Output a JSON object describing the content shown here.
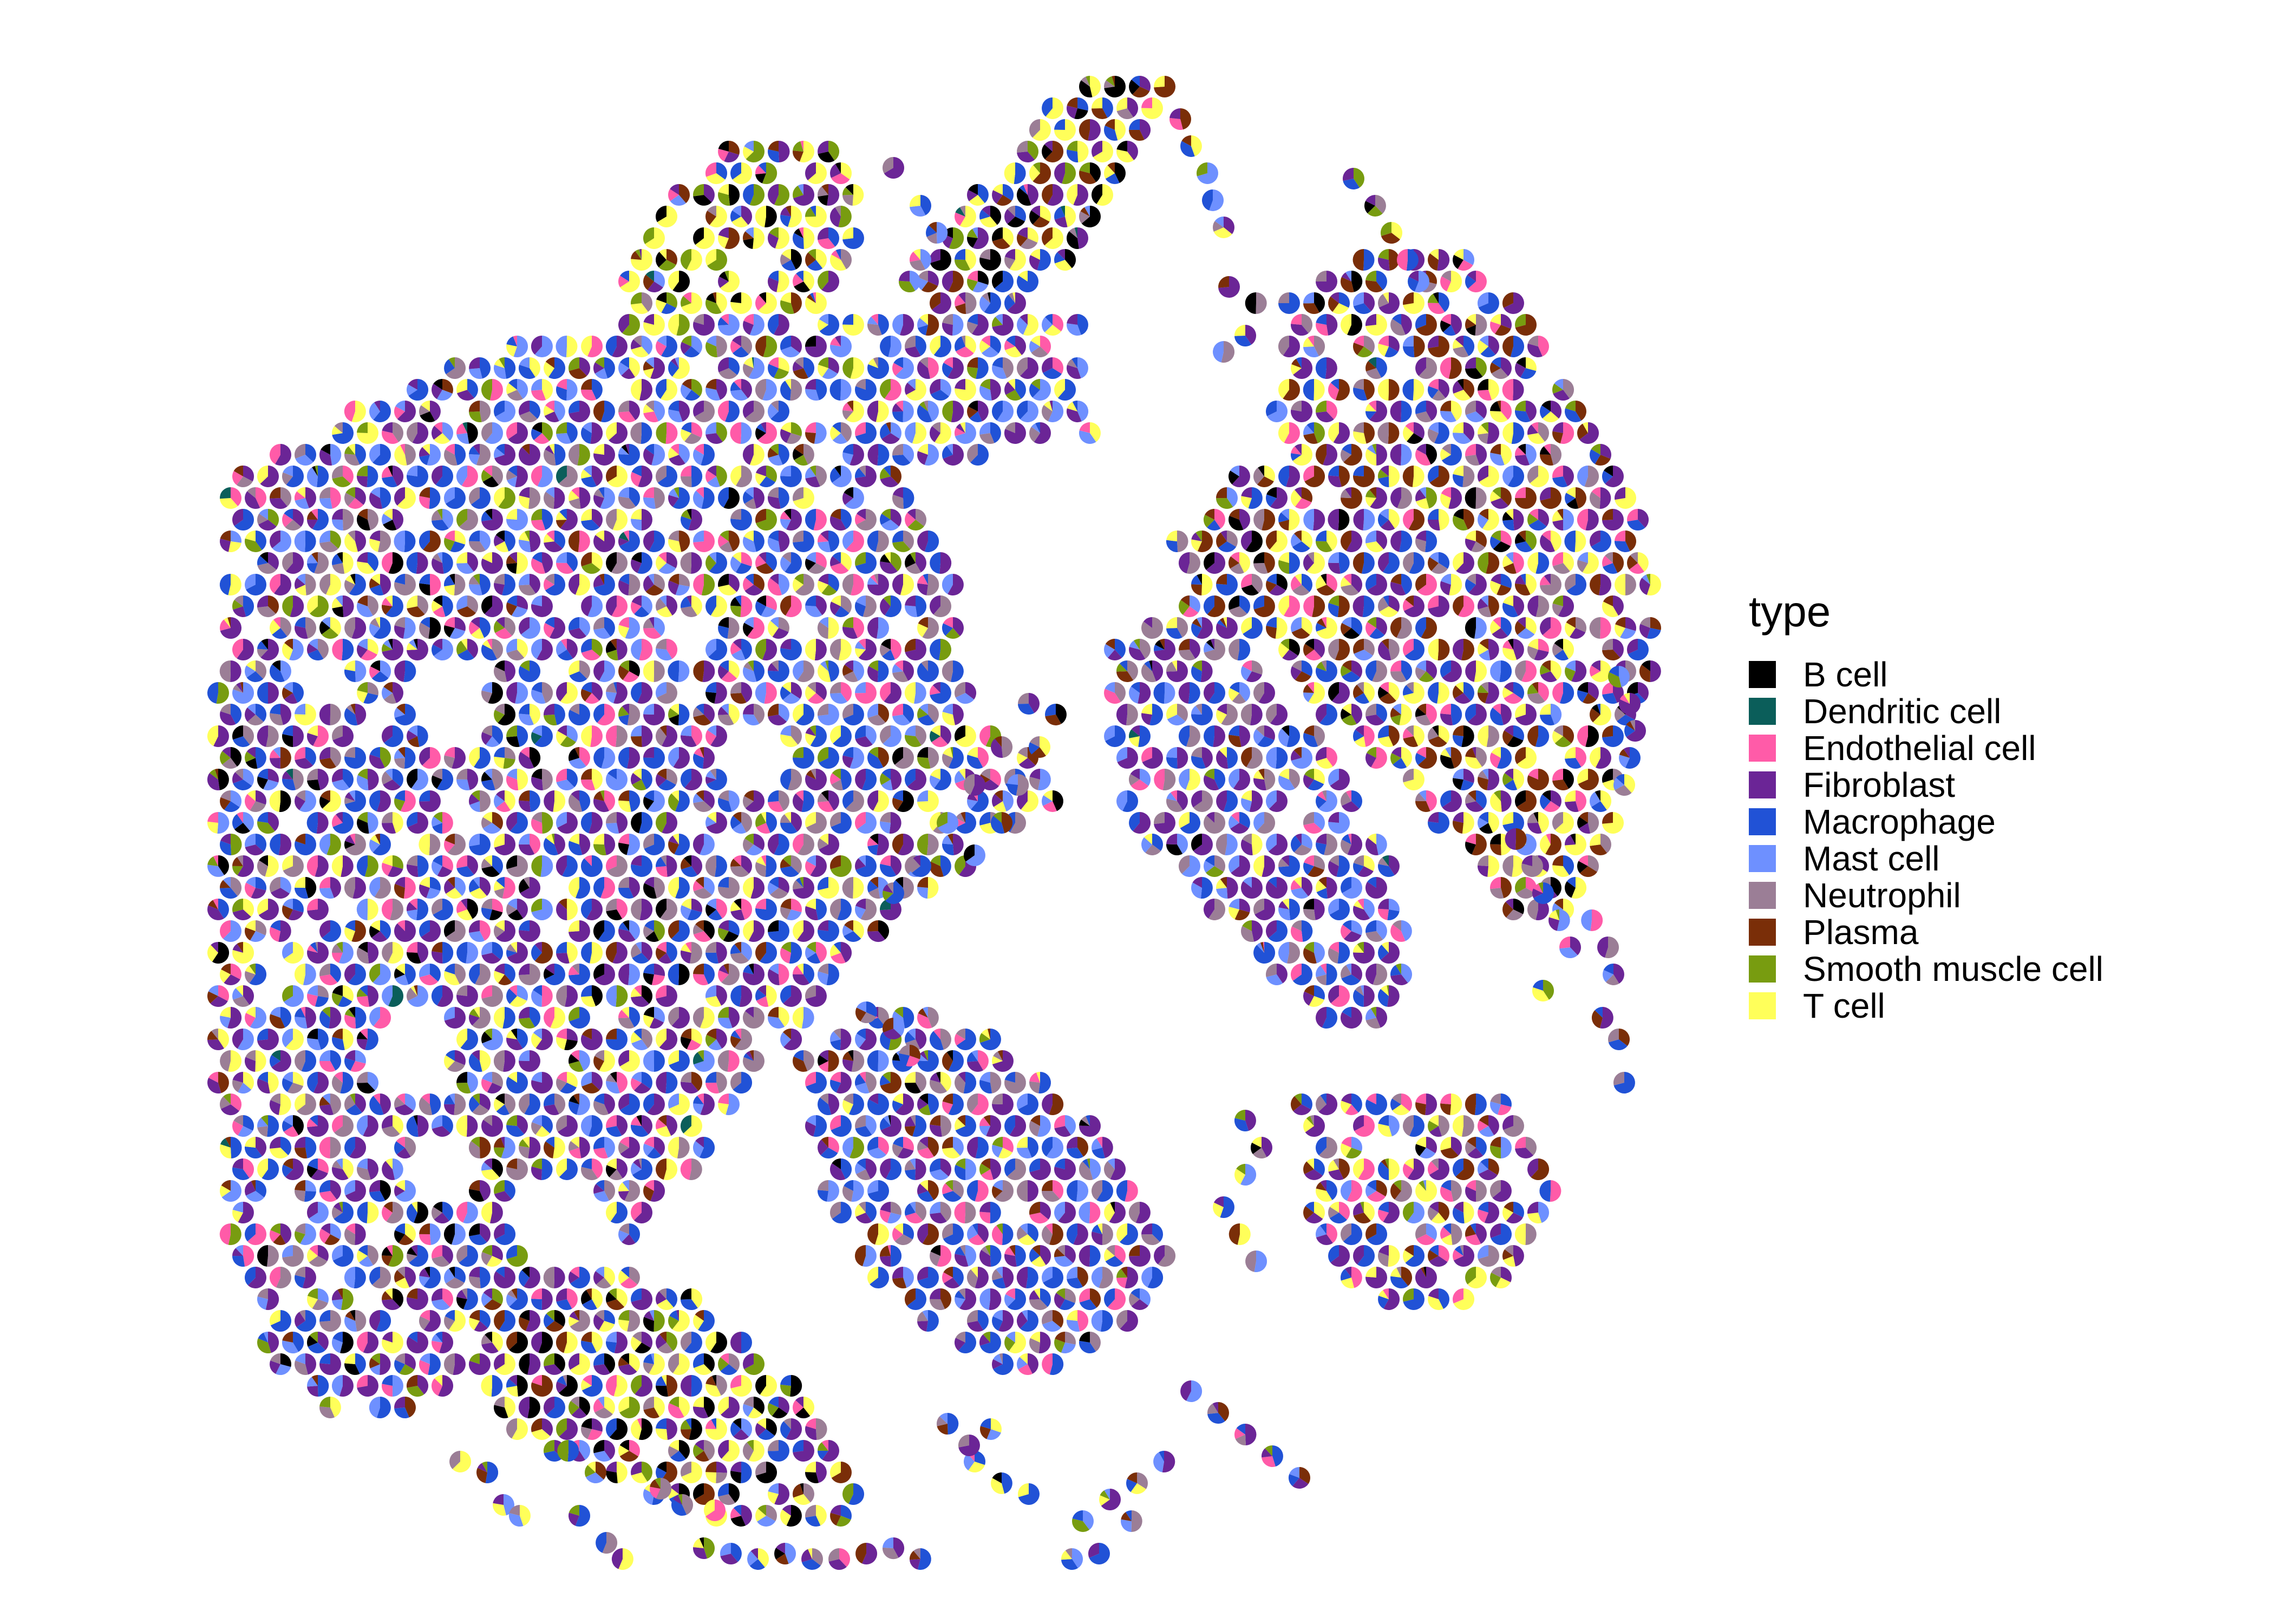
{
  "chart_data": {
    "type": "scatter",
    "subtype": "spatial scatter pie (per-spot cell-type proportions)",
    "title": "",
    "xlabel": "",
    "ylabel": "",
    "axes_visible": false,
    "grid": false,
    "legend_position": "right",
    "legend_title": "type",
    "categories": [
      "B cell",
      "Dendritic cell",
      "Endothelial cell",
      "Fibroblast",
      "Macrophage",
      "Mast cell",
      "Neutrophil",
      "Plasma",
      "Smooth muscle cell",
      "T cell"
    ],
    "colors": {
      "B cell": "#000000",
      "Dendritic cell": "#0b5e5a",
      "Endothelial cell": "#ff5ba8",
      "Fibroblast": "#6b2596",
      "Macrophage": "#2152d6",
      "Mast cell": "#6e90ff",
      "Neutrophil": "#9b7e96",
      "Plasma": "#7a2e08",
      "Smooth muscle cell": "#789c10",
      "T cell": "#ffff5a"
    },
    "note_on_points": "Several thousand pie glyphs, one per tissue spot; each slice is a cell-type proportion. Regions below are the approximate tissue footprint and the locally dominant cell types."
  }
}
